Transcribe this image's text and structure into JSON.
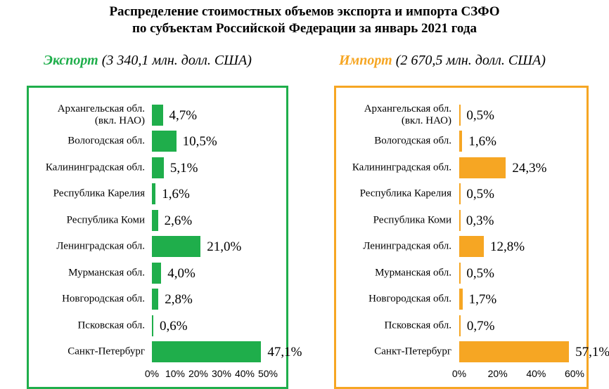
{
  "title": [
    "Распределение стоимостных объемов  экспорта  и  импорта СЗФО",
    "по  субъектам  Российской  Федерации за январь 2021 года"
  ],
  "chart_data": [
    {
      "type": "bar",
      "title": "Экспорт",
      "subtitle": "(3 340,1 млн. долл. США)",
      "color": "#1fae4b",
      "categories": [
        "Архангельская обл.\n(вкл. НАО)",
        "Вологодская обл.",
        "Калининградская обл.",
        "Республика Карелия",
        "Республика Коми",
        "Ленинградская обл.",
        "Мурманская обл.",
        "Новгородская обл.",
        "Псковская обл.",
        "Санкт-Петербург"
      ],
      "values": [
        4.7,
        10.5,
        5.1,
        1.6,
        2.6,
        21.0,
        4.0,
        2.8,
        0.6,
        47.1
      ],
      "value_labels": [
        "4,7%",
        "10,5%",
        "5,1%",
        "1,6%",
        "2,6%",
        "21,0%",
        "4,0%",
        "2,8%",
        "0,6%",
        "47,1%"
      ],
      "xlim": [
        0,
        50
      ],
      "xticks": [
        {
          "value": 0,
          "label": "0%"
        },
        {
          "value": 10,
          "label": "10%"
        },
        {
          "value": 20,
          "label": "20%"
        },
        {
          "value": 30,
          "label": "30%"
        },
        {
          "value": 40,
          "label": "40%"
        },
        {
          "value": 50,
          "label": "50%"
        }
      ]
    },
    {
      "type": "bar",
      "title": "Импорт",
      "subtitle": "(2 670,5  млн. долл. США)",
      "color": "#f6a623",
      "categories": [
        "Архангельская обл.\n(вкл. НАО)",
        "Вологодская обл.",
        "Калининградская обл.",
        "Республика Карелия",
        "Республика Коми",
        "Ленинградская обл.",
        "Мурманская обл.",
        "Новгородская обл.",
        "Псковская обл.",
        "Санкт-Петербург"
      ],
      "values": [
        0.5,
        1.6,
        24.3,
        0.5,
        0.3,
        12.8,
        0.5,
        1.7,
        0.7,
        57.1
      ],
      "value_labels": [
        "0,5%",
        "1,6%",
        "24,3%",
        "0,5%",
        "0,3%",
        "12,8%",
        "0,5%",
        "1,7%",
        "0,7%",
        "57,1%"
      ],
      "xlim": [
        0,
        60
      ],
      "xticks": [
        {
          "value": 0,
          "label": "0%"
        },
        {
          "value": 20,
          "label": "20%"
        },
        {
          "value": 40,
          "label": "40%"
        },
        {
          "value": 60,
          "label": "60%"
        }
      ]
    }
  ]
}
